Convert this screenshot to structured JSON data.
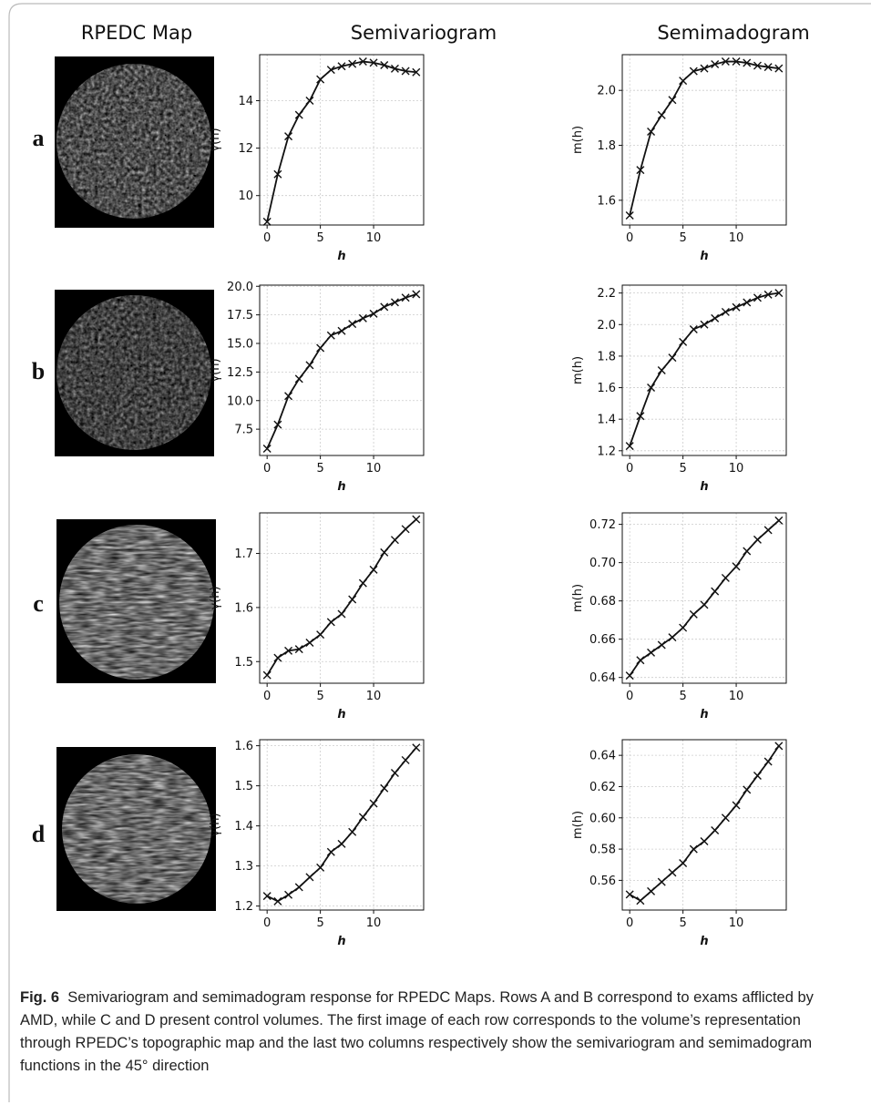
{
  "column_titles": [
    "RPEDC Map",
    "Semivariogram",
    "Semimadogram"
  ],
  "row_labels": [
    "a",
    "b",
    "c",
    "d"
  ],
  "caption": {
    "label": "Fig. 6",
    "text": "Semivariogram and semimadogram response for RPEDC Maps. Rows A and B correspond to exams afflicted by AMD, while C and D present control volumes. The first image of each row corresponds to the volume’s representation through RPEDC’s topographic map and the last two columns respectively show the semivariogram and semimadogram functions in the 45° direction"
  },
  "chart_data": [
    {
      "type": "line",
      "ylabel": "γ(h)",
      "xlabel": "h",
      "x": [
        0,
        1,
        2,
        3,
        4,
        5,
        6,
        7,
        8,
        9,
        10,
        11,
        12,
        13,
        14
      ],
      "xlim": [
        -0.7,
        14.7
      ],
      "xticks": [
        0,
        5,
        10
      ],
      "ylim": [
        8.76,
        15.94
      ],
      "yticks": [
        10,
        12,
        14
      ],
      "grid": true,
      "color": "#111111",
      "values": [
        8.9,
        10.9,
        12.5,
        13.4,
        14.0,
        14.9,
        15.3,
        15.45,
        15.55,
        15.65,
        15.6,
        15.5,
        15.35,
        15.25,
        15.2
      ]
    },
    {
      "type": "line",
      "ylabel": "m(h)",
      "xlabel": "h",
      "x": [
        0,
        1,
        2,
        3,
        4,
        5,
        6,
        7,
        8,
        9,
        10,
        11,
        12,
        13,
        14
      ],
      "xlim": [
        -0.7,
        14.7
      ],
      "xticks": [
        0,
        5,
        10
      ],
      "ylim": [
        1.51,
        2.13
      ],
      "yticks": [
        1.6,
        1.8,
        {
          "value": 2.0,
          "label": "2.0"
        }
      ],
      "grid": true,
      "color": "#111111",
      "values": [
        1.545,
        1.71,
        1.85,
        1.91,
        1.965,
        2.035,
        2.07,
        2.08,
        2.095,
        2.105,
        2.105,
        2.1,
        2.09,
        2.085,
        2.08
      ]
    },
    {
      "type": "line",
      "ylabel": "γ(h)",
      "xlabel": "h",
      "x": [
        0,
        1,
        2,
        3,
        4,
        5,
        6,
        7,
        8,
        9,
        10,
        11,
        12,
        13,
        14
      ],
      "xlim": [
        -0.7,
        14.7
      ],
      "xticks": [
        0,
        5,
        10
      ],
      "ylim": [
        5.2,
        20.1
      ],
      "yticks": [
        7.5,
        {
          "value": 10,
          "label": "10.0"
        },
        12.5,
        {
          "value": 15,
          "label": "15.0"
        },
        17.5,
        {
          "value": 20,
          "label": "20.0"
        }
      ],
      "grid": true,
      "color": "#111111",
      "values": [
        5.8,
        7.9,
        10.4,
        11.9,
        13.1,
        14.6,
        15.7,
        16.1,
        16.7,
        17.2,
        17.6,
        18.2,
        18.6,
        19.0,
        19.3
      ]
    },
    {
      "type": "line",
      "ylabel": "m(h)",
      "xlabel": "h",
      "x": [
        0,
        1,
        2,
        3,
        4,
        5,
        6,
        7,
        8,
        9,
        10,
        11,
        12,
        13,
        14
      ],
      "xlim": [
        -0.7,
        14.7
      ],
      "xticks": [
        0,
        5,
        10
      ],
      "ylim": [
        1.17,
        2.25
      ],
      "yticks": [
        1.2,
        1.4,
        1.6,
        1.8,
        {
          "value": 2.0,
          "label": "2.0"
        },
        2.2
      ],
      "grid": true,
      "color": "#111111",
      "values": [
        1.23,
        1.42,
        1.6,
        1.71,
        1.79,
        1.89,
        1.97,
        2.0,
        2.04,
        2.08,
        2.11,
        2.14,
        2.17,
        2.19,
        2.2
      ]
    },
    {
      "type": "line",
      "ylabel": "γ(h)",
      "xlabel": "h",
      "x": [
        0,
        1,
        2,
        3,
        4,
        5,
        6,
        7,
        8,
        9,
        10,
        11,
        12,
        13,
        14
      ],
      "xlim": [
        -0.7,
        14.7
      ],
      "xticks": [
        0,
        5,
        10
      ],
      "ylim": [
        1.46,
        1.775
      ],
      "yticks": [
        1.5,
        1.6,
        1.7
      ],
      "grid": true,
      "color": "#111111",
      "values": [
        1.475,
        1.507,
        1.52,
        1.523,
        1.535,
        1.55,
        1.573,
        1.588,
        1.615,
        1.645,
        1.67,
        1.702,
        1.725,
        1.745,
        1.763
      ]
    },
    {
      "type": "line",
      "ylabel": "m(h)",
      "xlabel": "h",
      "x": [
        0,
        1,
        2,
        3,
        4,
        5,
        6,
        7,
        8,
        9,
        10,
        11,
        12,
        13,
        14
      ],
      "xlim": [
        -0.7,
        14.7
      ],
      "xticks": [
        0,
        5,
        10
      ],
      "ylim": [
        0.637,
        0.726
      ],
      "yticks": [
        0.64,
        0.66,
        0.68,
        {
          "value": 0.7,
          "label": "0.70"
        },
        0.72
      ],
      "grid": true,
      "color": "#111111",
      "values": [
        0.641,
        0.649,
        0.653,
        0.657,
        0.661,
        0.666,
        0.673,
        0.678,
        0.685,
        0.692,
        0.698,
        0.706,
        0.712,
        0.717,
        0.722
      ]
    },
    {
      "type": "line",
      "ylabel": "γ(h)",
      "xlabel": "h",
      "x": [
        0,
        1,
        2,
        3,
        4,
        5,
        6,
        7,
        8,
        9,
        10,
        11,
        12,
        13,
        14
      ],
      "xlim": [
        -0.7,
        14.7
      ],
      "xticks": [
        0,
        5,
        10
      ],
      "ylim": [
        1.19,
        1.615
      ],
      "yticks": [
        1.2,
        1.3,
        1.4,
        1.5,
        1.6
      ],
      "grid": true,
      "color": "#111111",
      "values": [
        1.225,
        1.212,
        1.228,
        1.247,
        1.272,
        1.296,
        1.335,
        1.355,
        1.385,
        1.422,
        1.456,
        1.494,
        1.532,
        1.564,
        1.595
      ]
    },
    {
      "type": "line",
      "ylabel": "m(h)",
      "xlabel": "h",
      "x": [
        0,
        1,
        2,
        3,
        4,
        5,
        6,
        7,
        8,
        9,
        10,
        11,
        12,
        13,
        14
      ],
      "xlim": [
        -0.7,
        14.7
      ],
      "xticks": [
        0,
        5,
        10
      ],
      "ylim": [
        0.541,
        0.65
      ],
      "yticks": [
        0.56,
        0.58,
        {
          "value": 0.6,
          "label": "0.60"
        },
        0.62,
        0.64
      ],
      "grid": true,
      "color": "#111111",
      "values": [
        0.551,
        0.547,
        0.553,
        0.559,
        0.565,
        0.571,
        0.58,
        0.585,
        0.592,
        0.6,
        0.608,
        0.618,
        0.627,
        0.636,
        0.646
      ]
    }
  ]
}
